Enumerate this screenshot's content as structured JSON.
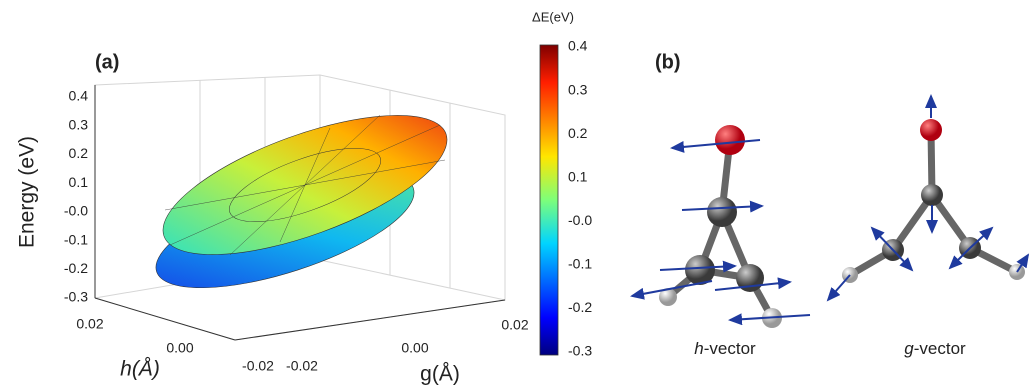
{
  "panel_a": {
    "label": "(a)",
    "z_axis_label": "Energy (eV)",
    "z_ticks": [
      "0.4",
      "0.3",
      "0.2",
      "0.1",
      "-0.0",
      "-0.1",
      "-0.2",
      "-0.3"
    ],
    "h_axis_label": "h(Å)",
    "h_ticks": [
      "0.02",
      "0.00",
      "-0.02"
    ],
    "g_axis_label": "g(Å)",
    "g_ticks": [
      "-0.02",
      "0.00",
      "0.02"
    ]
  },
  "colorbar": {
    "title": "ΔE(eV)",
    "ticks": [
      "0.4",
      "0.3",
      "0.2",
      "0.1",
      "-0.0",
      "-0.1",
      "-0.2",
      "-0.3"
    ]
  },
  "panel_b": {
    "label": "(b)",
    "left_caption": {
      "symbol": "h",
      "text": "-vector"
    },
    "right_caption": {
      "symbol": "g",
      "text": "-vector"
    }
  }
}
